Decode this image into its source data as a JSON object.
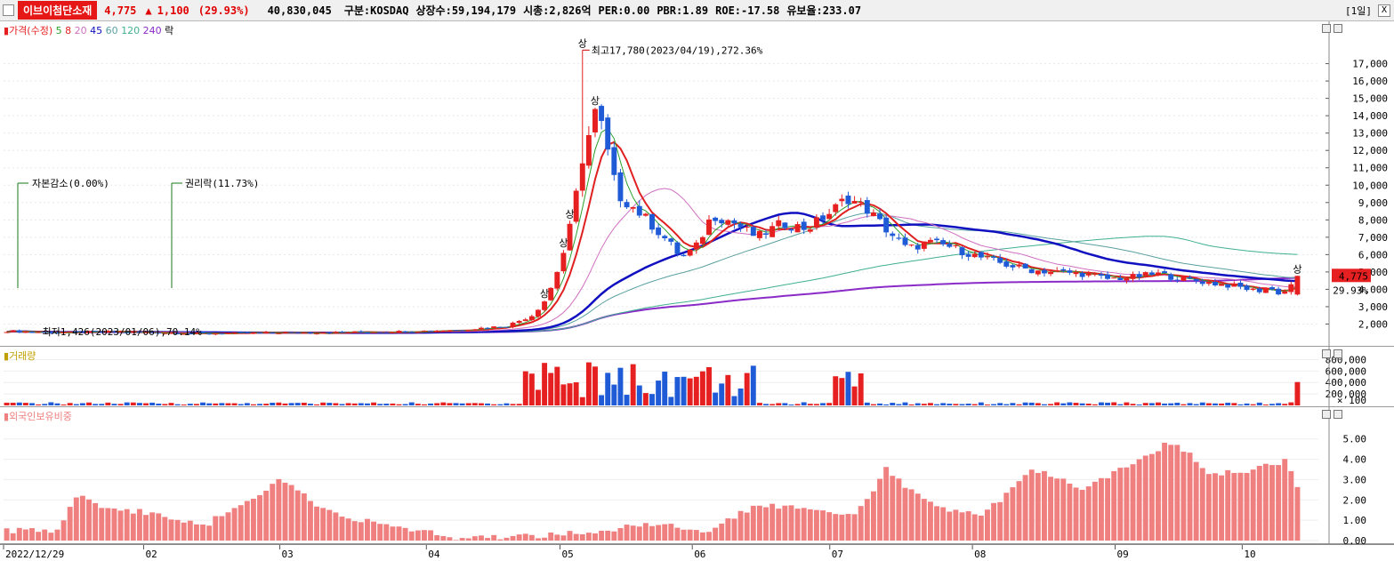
{
  "header": {
    "stock_name": "이브이첨단소재",
    "price": "4,775",
    "arrow": "▲",
    "change": "1,100",
    "change_pct": "(29.93%)",
    "volume": "40,830,045",
    "market": "구분:KOSDAQ",
    "shares": "상장수:59,194,179",
    "mcap": "시총:2,826억",
    "per": "PER:0.00",
    "pbr": "PBR:1.89",
    "roe": "ROE:-17.58",
    "reserve": "유보율:233.07",
    "period": "[1일]",
    "close": "X"
  },
  "price_panel": {
    "legend": {
      "price": "가격(수정)",
      "ma": [
        "5",
        "8",
        "20",
        "45",
        "60",
        "120",
        "240"
      ],
      "rak": "락"
    },
    "y_ticks": [
      "17,000",
      "16,000",
      "15,000",
      "14,000",
      "13,000",
      "12,000",
      "11,000",
      "10,000",
      "9,000",
      "8,000",
      "7,000",
      "6,000",
      "5,000",
      "4,000",
      "3,000",
      "2,000"
    ],
    "current_price_tag": "4,775",
    "current_pct_tag": "29.93%",
    "annotations": {
      "high": "최고17,780(2023/04/19),272.36%",
      "low": "최저1,426(2023/01/06),70.14%",
      "capital_reduction": "자본감소(0.00%)",
      "rights": "권리락(11.73%)",
      "upper_limit": "상"
    }
  },
  "volume_panel": {
    "legend": "거래량",
    "y_ticks": [
      "800,000",
      "600,000",
      "400,000",
      "200,000"
    ],
    "unit": "× 100"
  },
  "foreign_panel": {
    "legend": "외국인보유비중",
    "y_ticks": [
      "5.00",
      "4.00",
      "3.00",
      "2.00",
      "1.00",
      "0.00"
    ]
  },
  "x_axis": {
    "labels": [
      "2022/12/29",
      "02",
      "03",
      "04",
      "05",
      "06",
      "07",
      "08",
      "09",
      "10"
    ]
  },
  "colors": {
    "up": "#e62020",
    "down": "#1f5bd6",
    "ma5": "#2ca02c",
    "ma8": "#e02020",
    "ma20": "#d070c0",
    "ma45": "#1010c0",
    "ma60": "#5aa0a0",
    "ma120": "#40b090",
    "ma240": "#8a2bc8",
    "foreign": "#f08080"
  }
}
